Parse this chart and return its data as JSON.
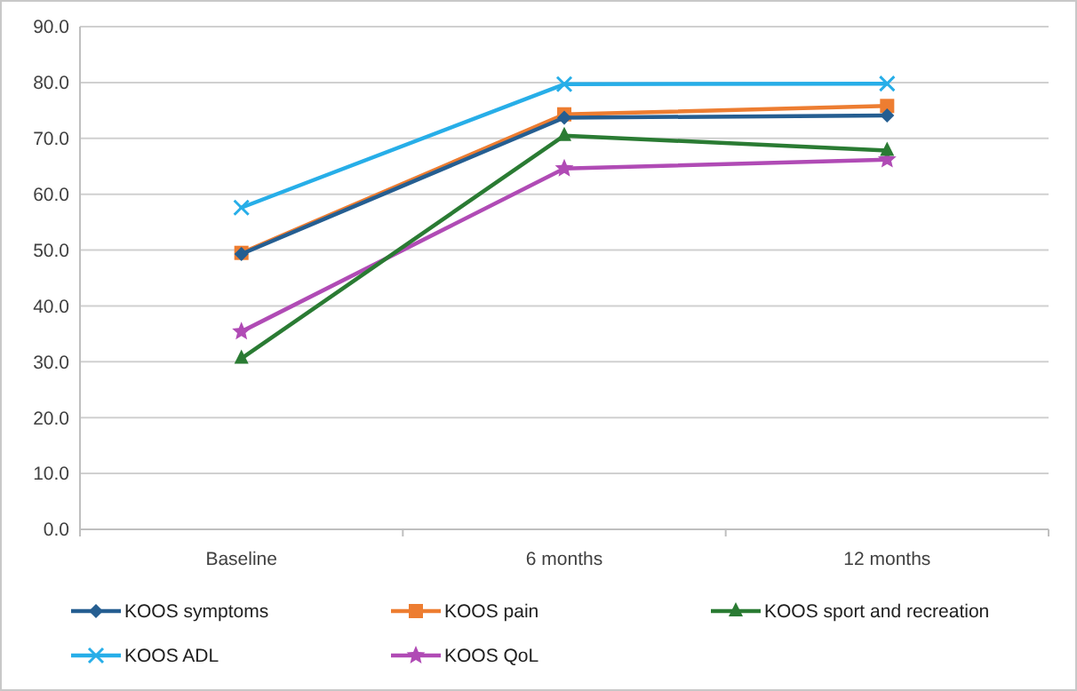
{
  "chart_data": {
    "type": "line",
    "categories": [
      "Baseline",
      "6 months",
      "12 months"
    ],
    "series": [
      {
        "name": "KOOS symptoms",
        "color": "#255e91",
        "marker": "diamond",
        "values": [
          49.3,
          73.7,
          74.1
        ]
      },
      {
        "name": "KOOS pain",
        "color": "#ed7d31",
        "marker": "square",
        "values": [
          49.5,
          74.3,
          75.8
        ]
      },
      {
        "name": "KOOS sport and recreation",
        "color": "#2a7b33",
        "marker": "triangle",
        "values": [
          30.6,
          70.5,
          67.8
        ]
      },
      {
        "name": "KOOS ADL",
        "color": "#27aee8",
        "marker": "cross",
        "values": [
          57.6,
          79.7,
          79.8
        ]
      },
      {
        "name": "KOOS QoL",
        "color": "#b04bb5",
        "marker": "star",
        "values": [
          35.4,
          64.6,
          66.2
        ]
      }
    ],
    "ylim": [
      0,
      90
    ],
    "yticks": [
      {
        "value": 0,
        "label": "0.0"
      },
      {
        "value": 10,
        "label": "10.0"
      },
      {
        "value": 20,
        "label": "20.0"
      },
      {
        "value": 30,
        "label": "30.0"
      },
      {
        "value": 40,
        "label": "40.0"
      },
      {
        "value": 50,
        "label": "50.0"
      },
      {
        "value": 60,
        "label": "60.0"
      },
      {
        "value": 70,
        "label": "70.0"
      },
      {
        "value": 80,
        "label": "80.0"
      },
      {
        "value": 90,
        "label": "90.0"
      }
    ],
    "grid": "y",
    "legend": "bottom",
    "line_style": "solid"
  }
}
